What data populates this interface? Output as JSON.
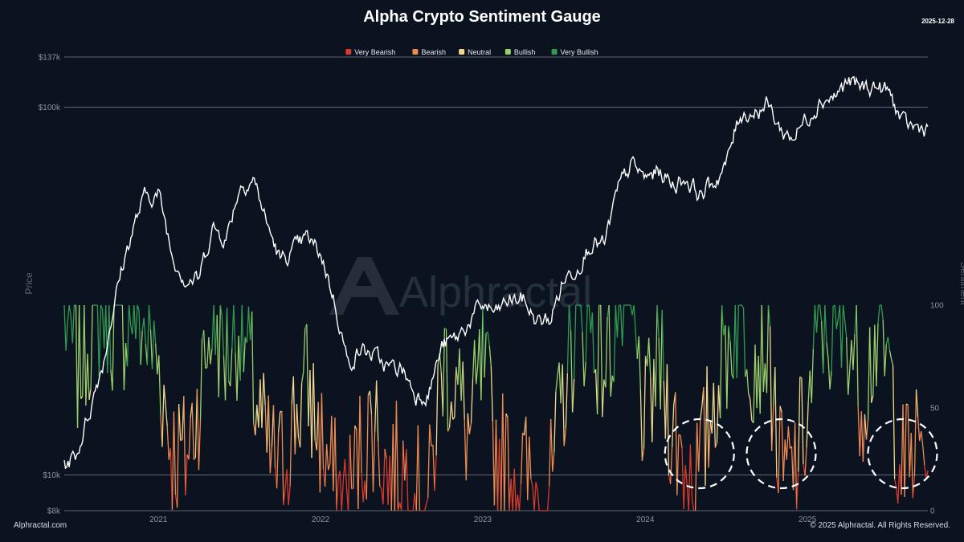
{
  "title": "Alpha Crypto Sentiment Gauge",
  "date": "2025-12-28",
  "watermark": "Alphractal",
  "footer": {
    "left": "Alphractal.com",
    "right": "© 2025 Alphractal. All Rights Reserved."
  },
  "colors": {
    "background": "#0c1320",
    "price_line": "#ffffff",
    "very_bearish": "#d93a2b",
    "bearish": "#ee8a50",
    "neutral": "#f3d88c",
    "bullish": "#9bd06a",
    "very_bullish": "#2f9b4f"
  },
  "chart_data": {
    "type": "line",
    "title": "Alpha Crypto Sentiment Gauge",
    "xlabel": "",
    "x_ticks": [
      "2021",
      "2022",
      "2023",
      "2024",
      "2025"
    ],
    "left_axis": {
      "label": "Price",
      "scale": "log",
      "ticks": [
        "$137k",
        "$100k",
        "$10k",
        "$8k"
      ],
      "tick_values": [
        137000,
        100000,
        10000,
        8000
      ]
    },
    "right_axis": {
      "label": "Sentiment",
      "ticks": [
        "100",
        "50",
        "0"
      ],
      "tick_values": [
        100,
        50,
        0
      ],
      "range": [
        0,
        100
      ]
    },
    "legend": {
      "placement": "top-center",
      "items": [
        {
          "name": "Very Bearish",
          "color": "#d93a2b"
        },
        {
          "name": "Bearish",
          "color": "#ee8a50"
        },
        {
          "name": "Neutral",
          "color": "#f3d88c"
        },
        {
          "name": "Bullish",
          "color": "#9bd06a"
        },
        {
          "name": "Very Bullish",
          "color": "#2f9b4f"
        }
      ]
    },
    "sentiment_bands": [
      {
        "name": "Very Bearish",
        "from": 0,
        "to": 20
      },
      {
        "name": "Bearish",
        "from": 20,
        "to": 40
      },
      {
        "name": "Neutral",
        "from": 40,
        "to": 60
      },
      {
        "name": "Bullish",
        "from": 60,
        "to": 80
      },
      {
        "name": "Very Bullish",
        "from": 80,
        "to": 100
      }
    ],
    "price_series": {
      "dates": [
        "2020-09",
        "2020-10",
        "2020-11",
        "2020-12",
        "2021-01",
        "2021-02",
        "2021-03",
        "2021-04",
        "2021-05",
        "2021-06",
        "2021-07",
        "2021-08",
        "2021-09",
        "2021-10",
        "2021-11",
        "2021-12",
        "2022-01",
        "2022-02",
        "2022-03",
        "2022-04",
        "2022-05",
        "2022-06",
        "2022-07",
        "2022-08",
        "2022-09",
        "2022-10",
        "2022-11",
        "2022-12",
        "2023-01",
        "2023-02",
        "2023-03",
        "2023-04",
        "2023-05",
        "2023-06",
        "2023-07",
        "2023-08",
        "2023-09",
        "2023-10",
        "2023-11",
        "2023-12",
        "2024-01",
        "2024-02",
        "2024-03",
        "2024-04",
        "2024-05",
        "2024-06",
        "2024-07",
        "2024-08",
        "2024-09",
        "2024-10",
        "2024-11",
        "2024-12",
        "2025-01",
        "2025-02",
        "2025-03",
        "2025-04",
        "2025-05",
        "2025-06",
        "2025-07",
        "2025-08",
        "2025-09",
        "2025-10",
        "2025-11",
        "2025-12"
      ],
      "values": [
        10500,
        11500,
        15500,
        21000,
        33000,
        46000,
        57000,
        58000,
        40000,
        34000,
        34000,
        47000,
        44000,
        61000,
        64000,
        48000,
        38000,
        41000,
        44000,
        40000,
        30000,
        20000,
        22000,
        21000,
        19500,
        19500,
        16500,
        16800,
        22500,
        23500,
        26000,
        29000,
        27500,
        30000,
        30000,
        26000,
        26500,
        34000,
        37000,
        43000,
        42000,
        60000,
        70000,
        64000,
        67000,
        62000,
        64000,
        58000,
        62000,
        70000,
        96000,
        97000,
        102000,
        86000,
        83000,
        94000,
        105000,
        107000,
        117000,
        113000,
        114000,
        110000,
        90000,
        88000
      ]
    },
    "sentiment_series": {
      "dates": [
        "2020-09",
        "2020-10",
        "2020-11",
        "2020-12",
        "2021-01",
        "2021-02",
        "2021-03",
        "2021-04",
        "2021-05",
        "2021-06",
        "2021-07",
        "2021-08",
        "2021-09",
        "2021-10",
        "2021-11",
        "2021-12",
        "2022-01",
        "2022-02",
        "2022-03",
        "2022-04",
        "2022-05",
        "2022-06",
        "2022-07",
        "2022-08",
        "2022-09",
        "2022-10",
        "2022-11",
        "2022-12",
        "2023-01",
        "2023-02",
        "2023-03",
        "2023-04",
        "2023-05",
        "2023-06",
        "2023-07",
        "2023-08",
        "2023-09",
        "2023-10",
        "2023-11",
        "2023-12",
        "2024-01",
        "2024-02",
        "2024-03",
        "2024-04",
        "2024-05",
        "2024-06",
        "2024-07",
        "2024-08",
        "2024-09",
        "2024-10",
        "2024-11",
        "2024-12",
        "2025-01",
        "2025-02",
        "2025-03",
        "2025-04",
        "2025-05",
        "2025-06",
        "2025-07",
        "2025-08",
        "2025-09",
        "2025-10",
        "2025-11",
        "2025-12"
      ],
      "values": [
        95,
        70,
        90,
        100,
        85,
        100,
        88,
        72,
        30,
        25,
        55,
        95,
        75,
        92,
        60,
        28,
        20,
        45,
        62,
        35,
        12,
        5,
        30,
        45,
        15,
        22,
        8,
        5,
        75,
        60,
        35,
        70,
        30,
        20,
        18,
        8,
        10,
        60,
        95,
        90,
        70,
        100,
        92,
        40,
        75,
        40,
        22,
        18,
        55,
        80,
        100,
        75,
        85,
        15,
        20,
        45,
        95,
        80,
        92,
        55,
        85,
        70,
        20,
        30
      ]
    },
    "annotations": [
      {
        "type": "dashed-circle",
        "around": "2024-08"
      },
      {
        "type": "dashed-circle",
        "around": "2025-02"
      },
      {
        "type": "dashed-circle",
        "around": "2025-11"
      }
    ]
  }
}
